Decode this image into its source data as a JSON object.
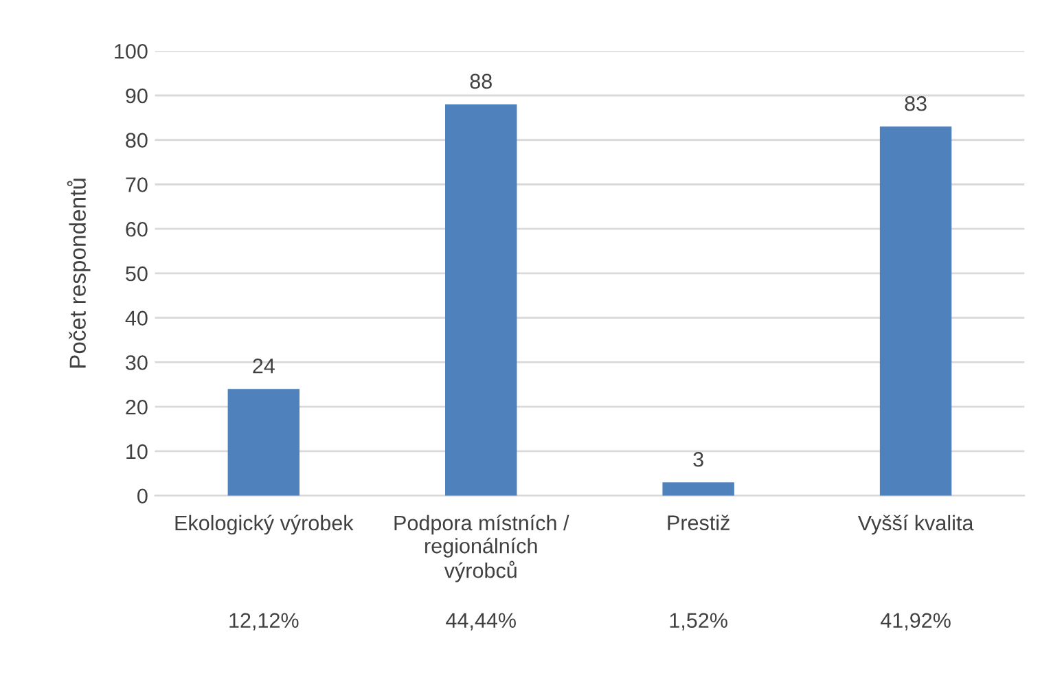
{
  "chart_data": {
    "type": "bar",
    "ylabel": "Počet respondentů",
    "categories": [
      "Ekologický výrobek",
      "Podpora místních /\nregionálních\nvýrobců",
      "Prestiž",
      "Vyšší kvalita"
    ],
    "values": [
      24,
      88,
      3,
      83
    ],
    "color": "#4f81bd",
    "ylim": [
      0,
      100
    ],
    "yticks": [
      0,
      10,
      20,
      30,
      40,
      50,
      60,
      70,
      80,
      90,
      100
    ],
    "grid": "y",
    "data_labels": true,
    "annotations": [
      "12,12%",
      "44,44%",
      "1,52%",
      "41,92%"
    ]
  }
}
